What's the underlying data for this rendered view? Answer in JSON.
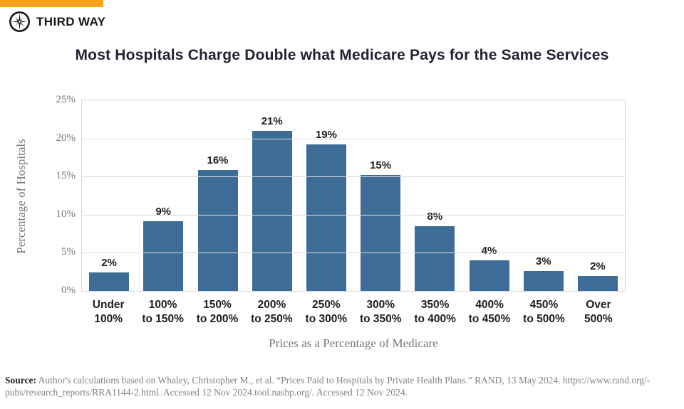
{
  "brand": {
    "name": "THIRD WAY",
    "accent_color": "#F9A21E",
    "logo_icon": "compass-star-icon"
  },
  "chart_data": {
    "type": "bar",
    "title": "Most Hospitals Charge Double what Medicare Pays for the Same Services",
    "xlabel": "Prices as a Percentage of Medicare",
    "ylabel": "Percentage of Hospitals",
    "categories": [
      "Under\n100%",
      "100%\nto 150%",
      "150%\nto 200%",
      "200%\nto 250%",
      "250%\nto 300%",
      "300%\nto 350%",
      "350%\nto 400%",
      "400%\nto 450%",
      "450%\nto 500%",
      "Over\n500%"
    ],
    "values": [
      2,
      9,
      16,
      21,
      19,
      15,
      8,
      4,
      3,
      2
    ],
    "labels": [
      "2%",
      "9%",
      "16%",
      "21%",
      "19%",
      "15%",
      "8%",
      "4%",
      "3%",
      "2%"
    ],
    "precise_values": [
      2.4,
      9.1,
      15.9,
      21.0,
      19.2,
      15.2,
      8.5,
      4.0,
      2.6,
      2.0
    ],
    "y_tick_values": [
      25,
      20,
      15,
      10,
      5,
      0
    ],
    "y_tick_labels": [
      "25%",
      "20%",
      "15%",
      "10%",
      "5%",
      "0%"
    ],
    "ylim": [
      0,
      25
    ],
    "grid": true,
    "legend": "none",
    "bar_color": "#3D6C96",
    "grid_color": "#DBDCDE",
    "label_color": "#1D1D1B",
    "axis_text_color": "#77787B"
  },
  "source": {
    "label": "Source:",
    "line1": " Author's calculations based on Whaley, Christopher M., et al. “Prices Paid to Hospitals by Private Health Plans.” RAND, 13 May 2024. https://www.rand.org/-",
    "line2": "pubs/research_reports/RRA1144-2.html. Accessed 12 Nov 2024.tool.nashp.org/. Accessed 12 Nov 2024."
  }
}
